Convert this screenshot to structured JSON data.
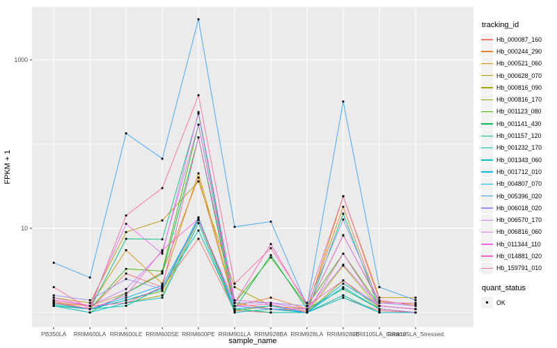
{
  "chart_data": {
    "type": "line",
    "title": "",
    "xlabel": "sample_name",
    "ylabel": "FPKM + 1",
    "scale": "log10",
    "grid": "on",
    "legend_position": "right",
    "x_categories": [
      "PB350LA",
      "RRIM600LA",
      "RRIM600LE",
      "RRIM600SE",
      "RRIM600PE",
      "RRIM901LA",
      "RRIM928BA",
      "RRIM928LA",
      "RRIM928LE",
      "RRII105LA_Control",
      "RRII105LA_Stressed"
    ],
    "y_ticks": [
      {
        "label": "10",
        "value": 10
      },
      {
        "label": "1000",
        "value": 1000
      }
    ],
    "y_minor_values": [
      1,
      100
    ],
    "ylim": [
      0.67,
      4500
    ],
    "legend_title": "tracking_id",
    "legend2_title": "quant_status",
    "legend2_items": [
      {
        "label": "OK"
      }
    ],
    "point_color": "#000000",
    "panel_bg": "#EBEBEB",
    "grid_color": "#FFFFFF",
    "axis_text_color": "#4D4D4D",
    "series": [
      {
        "name": "Hb_000087_160",
        "color": "#F8766D",
        "values": [
          1.35,
          1.1,
          2.9,
          2.0,
          7.5,
          1.05,
          1.0,
          1.0,
          1.5,
          1.05,
          1.0
        ]
      },
      {
        "name": "Hb_000244_290",
        "color": "#EA8331",
        "values": [
          1.4,
          1.2,
          1.7,
          3.0,
          40,
          1.2,
          1.5,
          1.1,
          18,
          1.2,
          1.1
        ]
      },
      {
        "name": "Hb_000521_060",
        "color": "#D89000",
        "values": [
          1.3,
          1.2,
          5.5,
          2.2,
          45,
          1.3,
          1.1,
          1.05,
          24,
          1.5,
          1.5
        ]
      },
      {
        "name": "Hb_000628_070",
        "color": "#C09B00",
        "values": [
          1.5,
          1.3,
          9.0,
          12.4,
          36,
          2.0,
          1.2,
          1.1,
          8.2,
          1.35,
          1.25
        ]
      },
      {
        "name": "Hb_000816_090",
        "color": "#A3A500",
        "values": [
          1.4,
          1.2,
          1.3,
          1.6,
          12.5,
          1.1,
          1.0,
          1.0,
          3.6,
          1.1,
          1.0
        ]
      },
      {
        "name": "Hb_000816_170",
        "color": "#7CAE00",
        "values": [
          1.2,
          1.1,
          1.4,
          1.8,
          13,
          1.05,
          1.2,
          1.0,
          2.4,
          1.1,
          1.0
        ]
      },
      {
        "name": "Hb_001123_080",
        "color": "#39B600",
        "values": [
          1.3,
          1.1,
          3.3,
          3.1,
          170,
          1.3,
          4.5,
          1.2,
          5.0,
          1.2,
          1.1
        ]
      },
      {
        "name": "Hb_001141_430",
        "color": "#00BB4E",
        "values": [
          1.2,
          1.0,
          1.7,
          2.9,
          120,
          1.1,
          4.8,
          1.1,
          1.9,
          1.1,
          1.0
        ]
      },
      {
        "name": "Hb_001157_120",
        "color": "#00BF7D",
        "values": [
          1.25,
          1.1,
          7.5,
          7.4,
          230,
          1.2,
          1.1,
          1.0,
          14.9,
          1.1,
          1.0
        ]
      },
      {
        "name": "Hb_001232_170",
        "color": "#00C1A3",
        "values": [
          1.3,
          1.1,
          1.2,
          2.0,
          9.4,
          1.1,
          1.0,
          1.0,
          1.6,
          1.0,
          1.0
        ]
      },
      {
        "name": "Hb_001343_060",
        "color": "#00BFC4",
        "values": [
          1.2,
          1.0,
          1.3,
          1.5,
          11.5,
          1.0,
          1.1,
          1.0,
          1.5,
          1.0,
          1.0
        ]
      },
      {
        "name": "Hb_001712_010",
        "color": "#00BAE0",
        "values": [
          1.2,
          1.1,
          1.4,
          1.9,
          13.5,
          1.1,
          1.2,
          1.0,
          2.0,
          1.1,
          1.0
        ]
      },
      {
        "name": "Hb_004807_070",
        "color": "#00B0F6",
        "values": [
          1.3,
          1.1,
          1.5,
          2.1,
          12.8,
          1.2,
          1.1,
          1.0,
          2.2,
          1.2,
          1.1
        ]
      },
      {
        "name": "Hb_005396_020",
        "color": "#35A2FF",
        "values": [
          3.9,
          2.6,
          134,
          67,
          3030,
          10.4,
          12,
          1.2,
          320,
          2.0,
          1.4
        ]
      },
      {
        "name": "Hb_006018_020",
        "color": "#9590FF",
        "values": [
          1.6,
          1.4,
          2.5,
          1.9,
          12.7,
          1.3,
          1.3,
          1.2,
          12.7,
          1.3,
          1.2
        ]
      },
      {
        "name": "Hb_006570_170",
        "color": "#C77CFF",
        "values": [
          1.4,
          1.2,
          1.9,
          5.3,
          170,
          1.2,
          1.1,
          1.1,
          3.7,
          1.2,
          1.1
        ]
      },
      {
        "name": "Hb_006816_060",
        "color": "#E76BF3",
        "values": [
          1.5,
          1.2,
          11.3,
          5.0,
          240,
          1.4,
          1.3,
          1.1,
          8.3,
          1.3,
          1.3
        ]
      },
      {
        "name": "Hb_011344_110",
        "color": "#FA62DB",
        "values": [
          1.3,
          1.1,
          1.6,
          5.5,
          13,
          1.2,
          1.25,
          1.0,
          5.0,
          1.1,
          1.0
        ]
      },
      {
        "name": "Hb_014881_020",
        "color": "#FF61C3",
        "values": [
          1.4,
          1.2,
          1.3,
          2.0,
          120,
          1.3,
          6.5,
          1.2,
          2.4,
          1.2,
          1.1
        ]
      },
      {
        "name": "Hb_159791_010",
        "color": "#FF67A4",
        "values": [
          2.0,
          1.1,
          14.2,
          30,
          380,
          2.2,
          5.8,
          1.3,
          24,
          1.4,
          1.2
        ]
      }
    ]
  }
}
